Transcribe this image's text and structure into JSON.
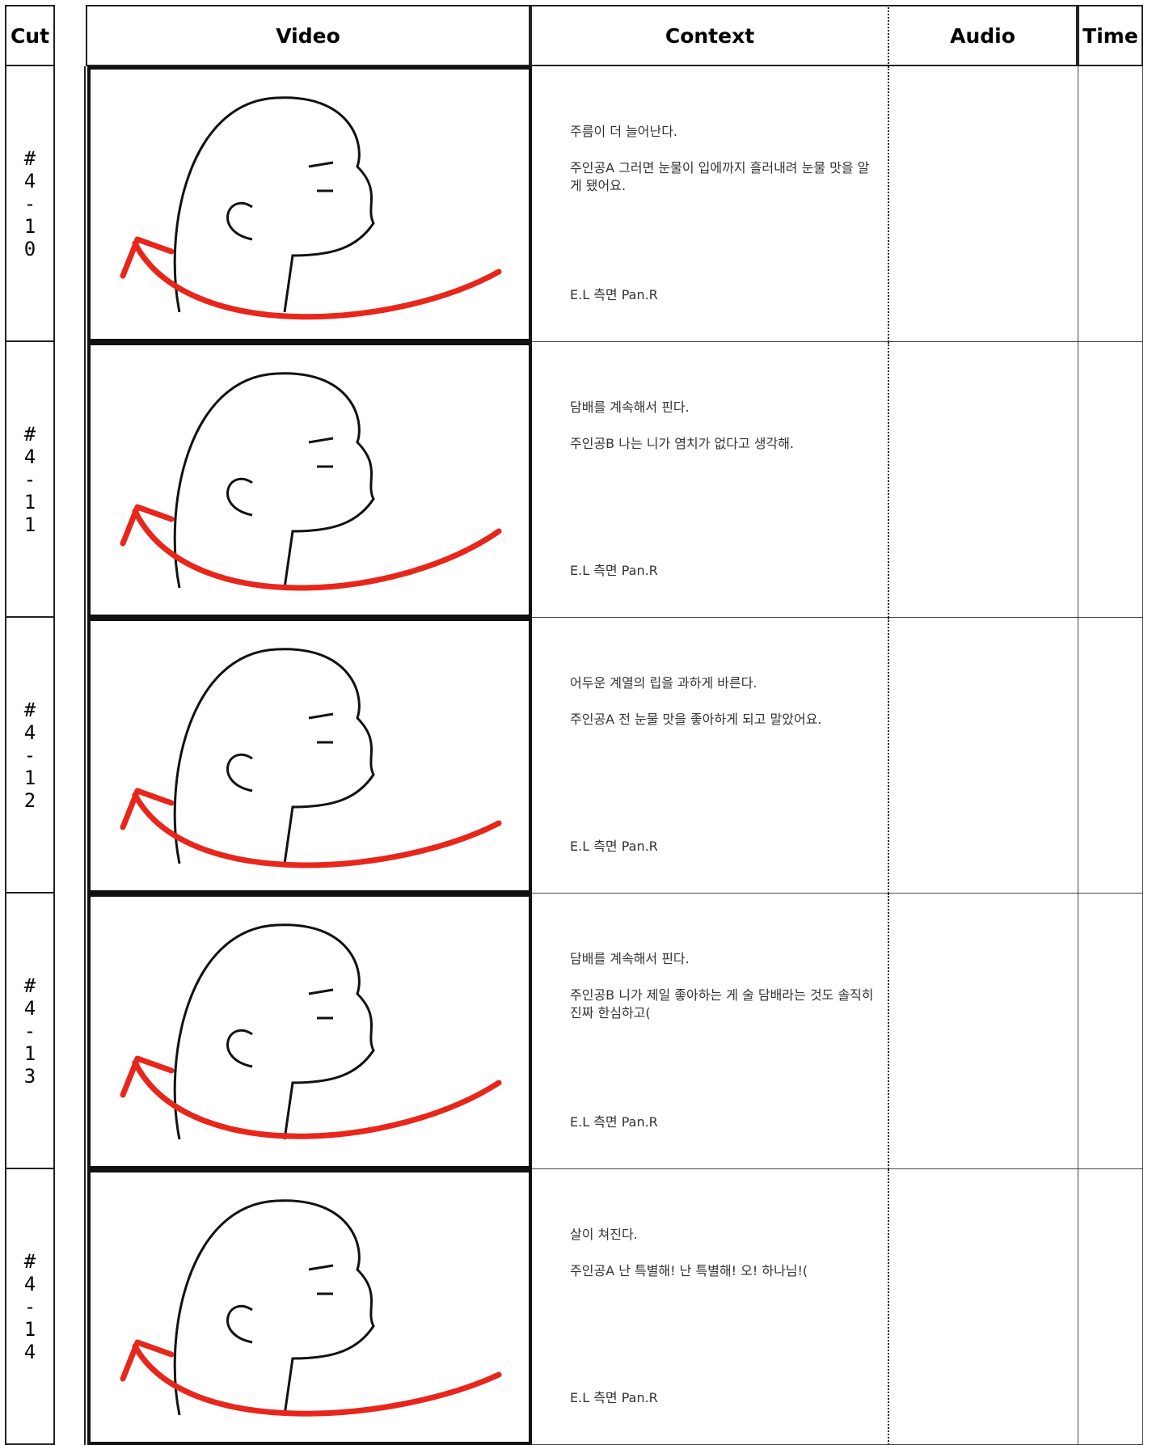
{
  "header": {
    "columns": [
      "Cut",
      "Video",
      "Context",
      "Audio",
      "Time"
    ]
  },
  "rows": [
    {
      "cut": "#4-10",
      "context": [
        "주름이 더 늘어난다.",
        "주인공A 그러면 눈물이 입에까지 흘러내려 눈물 맛을 알게 됐어요."
      ],
      "camera": "E.L 측면 Pan.R"
    },
    {
      "cut": "#4-11",
      "context": [
        "담배를 계속해서 핀다.",
        "주인공B 나는 니가 염치가 없다고 생각해."
      ],
      "camera": "E.L 측면 Pan.R"
    },
    {
      "cut": "#4-12",
      "context": [
        "어두운 계열의 립을 과하게 바른다.",
        "주인공A 전 눈물 맛을 좋아하게 되고 말았어요."
      ],
      "camera": "E.L 측면 Pan.R"
    },
    {
      "cut": "#4-13",
      "context": [
        "담배를 계속해서 핀다.",
        "주인공B 니가 제일 좋아하는 게 술 담배라는 것도 솔직히 진짜 한심하고("
      ],
      "camera": "E.L 측면 Pan.R"
    },
    {
      "cut": "#4-14",
      "context": [
        "살이 쳐진다.",
        "주인공A 난 특별해! 난 특별해! 오! 하나님!("
      ],
      "camera": "E.L 측면 Pan.R"
    }
  ]
}
